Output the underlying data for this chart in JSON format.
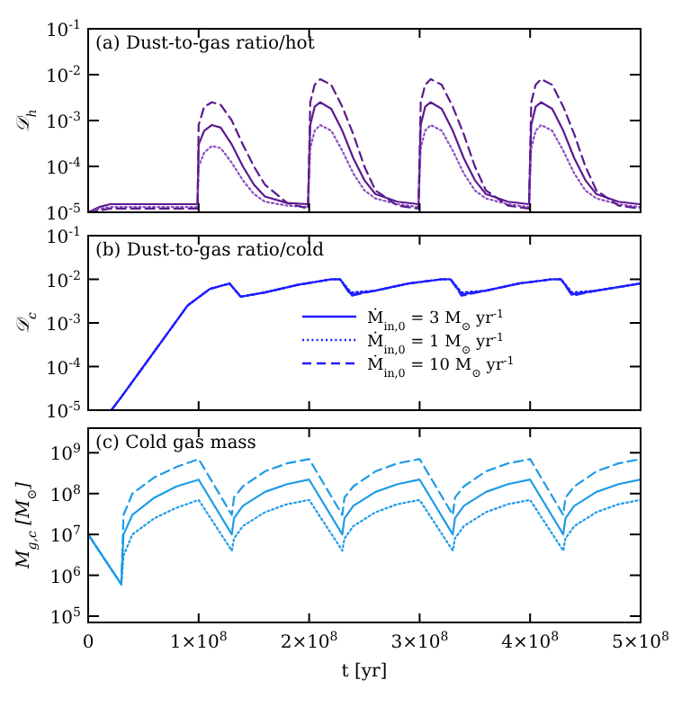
{
  "chart_data": [
    {
      "type": "line",
      "title": "(a) Dust-to-gas ratio/hot",
      "ylabel": "𝒟$_{h}$",
      "log": "y",
      "xlim": [
        0,
        500000000.0
      ],
      "ylim": [
        1e-05,
        0.1
      ],
      "xticks": [
        {
          "value": 0,
          "label": null
        },
        {
          "value": 100000000.0,
          "label": null
        },
        {
          "value": 200000000.0,
          "label": null
        },
        {
          "value": 300000000.0,
          "label": null
        },
        {
          "value": 400000000.0,
          "label": null
        },
        {
          "value": 500000000.0,
          "label": null
        }
      ],
      "yticks": [
        {
          "value": 1e-05,
          "label": "10$^{-5}$"
        },
        {
          "value": 0.0001,
          "label": "10$^{-4}$"
        },
        {
          "value": 0.001,
          "label": "10$^{-3}$"
        },
        {
          "value": 0.01,
          "label": "10$^{-2}$"
        },
        {
          "value": 0.1,
          "label": "10$^{-1}$"
        }
      ],
      "tick_labels": "y",
      "grid": false,
      "legend": false,
      "marker": "none",
      "series": [
        {
          "color": "#5b1a8e",
          "line_style": "solid",
          "x": [
            0,
            10000000.0,
            20000000.0,
            99000000.0,
            100000000.0,
            105000000.0,
            112000000.0,
            120000000.0,
            130000000.0,
            140000000.0,
            150000000.0,
            160000000.0,
            180000000.0,
            199000000.0,
            201000000.0,
            205000000.0,
            210000000.0,
            220000000.0,
            230000000.0,
            240000000.0,
            250000000.0,
            260000000.0,
            280000000.0,
            299000000.0,
            301000000.0,
            305000000.0,
            310000000.0,
            320000000.0,
            330000000.0,
            340000000.0,
            350000000.0,
            360000000.0,
            380000000.0,
            399000000.0,
            401000000.0,
            405000000.0,
            410000000.0,
            420000000.0,
            430000000.0,
            440000000.0,
            450000000.0,
            460000000.0,
            480000000.0,
            499000000.0,
            500000000.0
          ],
          "values": [
            1e-05,
            1.3e-05,
            1.5e-05,
            1.5e-05,
            0.0003,
            0.0006,
            0.0008,
            0.0007,
            0.0003,
            0.0001,
            4e-05,
            2.2e-05,
            1.6e-05,
            1.5e-05,
            0.0008,
            0.002,
            0.0025,
            0.0018,
            0.0006,
            0.00015,
            5e-05,
            2.5e-05,
            1.7e-05,
            1.5e-05,
            0.0008,
            0.002,
            0.0025,
            0.0018,
            0.0006,
            0.00015,
            5e-05,
            2.5e-05,
            1.7e-05,
            1.5e-05,
            0.0008,
            0.002,
            0.0025,
            0.0018,
            0.0006,
            0.00015,
            5e-05,
            2.5e-05,
            1.7e-05,
            1.5e-05,
            1.5e-05
          ]
        },
        {
          "color": "#8a4fc0",
          "line_style": "dotted",
          "x": [
            0,
            10000000.0,
            20000000.0,
            99000000.0,
            100000000.0,
            105000000.0,
            112000000.0,
            120000000.0,
            130000000.0,
            140000000.0,
            150000000.0,
            160000000.0,
            180000000.0,
            199000000.0,
            201000000.0,
            205000000.0,
            210000000.0,
            220000000.0,
            230000000.0,
            240000000.0,
            250000000.0,
            260000000.0,
            280000000.0,
            299000000.0,
            301000000.0,
            305000000.0,
            310000000.0,
            320000000.0,
            330000000.0,
            340000000.0,
            350000000.0,
            360000000.0,
            380000000.0,
            399000000.0,
            401000000.0,
            405000000.0,
            410000000.0,
            420000000.0,
            430000000.0,
            440000000.0,
            450000000.0,
            460000000.0,
            480000000.0,
            499000000.0,
            500000000.0
          ],
          "values": [
            1e-05,
            1.2e-05,
            1.3e-05,
            1.3e-05,
            0.0001,
            0.0002,
            0.00028,
            0.00025,
            0.00012,
            5e-05,
            2.5e-05,
            1.7e-05,
            1.4e-05,
            1.3e-05,
            0.00025,
            0.0006,
            0.0008,
            0.0006,
            0.00022,
            7e-05,
            3e-05,
            2e-05,
            1.5e-05,
            1.3e-05,
            0.00025,
            0.0006,
            0.0008,
            0.0006,
            0.00022,
            7e-05,
            3e-05,
            2e-05,
            1.5e-05,
            1.3e-05,
            0.00025,
            0.0006,
            0.0008,
            0.0006,
            0.00022,
            7e-05,
            3e-05,
            2e-05,
            1.5e-05,
            1.3e-05,
            1.3e-05
          ]
        },
        {
          "color": "#5b1a8e",
          "line_style": "dashed",
          "x": [
            0,
            10000000.0,
            20000000.0,
            99000000.0,
            100000000.0,
            105000000.0,
            112000000.0,
            120000000.0,
            130000000.0,
            140000000.0,
            150000000.0,
            160000000.0,
            180000000.0,
            199000000.0,
            201000000.0,
            205000000.0,
            210000000.0,
            220000000.0,
            230000000.0,
            240000000.0,
            250000000.0,
            260000000.0,
            280000000.0,
            299000000.0,
            301000000.0,
            305000000.0,
            310000000.0,
            320000000.0,
            330000000.0,
            340000000.0,
            350000000.0,
            360000000.0,
            380000000.0,
            399000000.0,
            401000000.0,
            405000000.0,
            410000000.0,
            420000000.0,
            430000000.0,
            440000000.0,
            450000000.0,
            460000000.0,
            480000000.0,
            499000000.0,
            500000000.0
          ],
          "values": [
            1e-05,
            1.1e-05,
            1.2e-05,
            1.2e-05,
            0.0008,
            0.002,
            0.0025,
            0.0022,
            0.001,
            0.0003,
            0.0001,
            4e-05,
            1.6e-05,
            1.2e-05,
            0.0025,
            0.006,
            0.008,
            0.006,
            0.002,
            0.0005,
            0.0001,
            3e-05,
            1.4e-05,
            1.2e-05,
            0.0025,
            0.006,
            0.008,
            0.006,
            0.002,
            0.0005,
            0.0001,
            3e-05,
            1.4e-05,
            1.2e-05,
            0.0025,
            0.006,
            0.008,
            0.006,
            0.002,
            0.0005,
            0.0001,
            3e-05,
            1.4e-05,
            1.2e-05,
            1.2e-05
          ]
        }
      ]
    },
    {
      "type": "line",
      "title": "(b) Dust-to-gas ratio/cold",
      "ylabel": "𝒟$_{c}$",
      "log": "y",
      "xlim": [
        0,
        500000000.0
      ],
      "ylim": [
        1e-05,
        0.1
      ],
      "xticks": [
        {
          "value": 0,
          "label": null
        },
        {
          "value": 100000000.0,
          "label": null
        },
        {
          "value": 200000000.0,
          "label": null
        },
        {
          "value": 300000000.0,
          "label": null
        },
        {
          "value": 400000000.0,
          "label": null
        },
        {
          "value": 500000000.0,
          "label": null
        }
      ],
      "yticks": [
        {
          "value": 1e-05,
          "label": "10$^{-5}$"
        },
        {
          "value": 0.0001,
          "label": "10$^{-4}$"
        },
        {
          "value": 0.001,
          "label": "10$^{-3}$"
        },
        {
          "value": 0.01,
          "label": "10$^{-2}$"
        },
        {
          "value": 0.1,
          "label": "10$^{-1}$"
        }
      ],
      "tick_labels": "y",
      "grid": false,
      "legend": "bottom right",
      "marker": "none",
      "series": [
        {
          "name": "Ṁ$_{in,0}$ = 3 M$_{⊙}$ yr$^{-1}$",
          "color": "#1f1fff",
          "line_style": "solid",
          "x": [
            21000000.0,
            30000000.0,
            50000000.0,
            70000000.0,
            90000000.0,
            110000000.0,
            128000000.0,
            138000000.0,
            160000000.0,
            190000000.0,
            220000000.0,
            228000000.0,
            238000000.0,
            260000000.0,
            290000000.0,
            320000000.0,
            328000000.0,
            338000000.0,
            360000000.0,
            390000000.0,
            420000000.0,
            428000000.0,
            438000000.0,
            460000000.0,
            500000000.0
          ],
          "values": [
            1e-05,
            2e-05,
            0.0001,
            0.0005,
            0.0025,
            0.006,
            0.008,
            0.004,
            0.005,
            0.0075,
            0.01,
            0.01,
            0.0045,
            0.0055,
            0.008,
            0.01,
            0.01,
            0.0045,
            0.0055,
            0.008,
            0.01,
            0.01,
            0.0045,
            0.0055,
            0.008
          ]
        },
        {
          "name": "Ṁ$_{in,0}$ = 1 M$_{⊙}$ yr$^{-1}$",
          "color": "#1f1fff",
          "line_style": "dotted",
          "x": [
            21000000.0,
            30000000.0,
            50000000.0,
            70000000.0,
            90000000.0,
            110000000.0,
            128000000.0,
            138000000.0,
            160000000.0,
            190000000.0,
            220000000.0,
            228000000.0,
            238000000.0,
            260000000.0,
            290000000.0,
            320000000.0,
            328000000.0,
            338000000.0,
            360000000.0,
            390000000.0,
            420000000.0,
            428000000.0,
            438000000.0,
            460000000.0,
            500000000.0
          ],
          "values": [
            1e-05,
            2e-05,
            0.0001,
            0.0005,
            0.0025,
            0.006,
            0.008,
            0.004,
            0.005,
            0.0075,
            0.01,
            0.01,
            0.005,
            0.0055,
            0.008,
            0.01,
            0.01,
            0.005,
            0.0055,
            0.008,
            0.01,
            0.01,
            0.005,
            0.0055,
            0.008
          ]
        },
        {
          "name": "Ṁ$_{in,0}$ = 10 M$_{⊙}$ yr$^{-1}$",
          "color": "#1f1fff",
          "line_style": "dashed",
          "x": [
            21000000.0,
            30000000.0,
            50000000.0,
            70000000.0,
            90000000.0,
            110000000.0,
            128000000.0,
            138000000.0,
            160000000.0,
            190000000.0,
            220000000.0,
            228000000.0,
            238000000.0,
            260000000.0,
            290000000.0,
            320000000.0,
            328000000.0,
            338000000.0,
            360000000.0,
            390000000.0,
            420000000.0,
            428000000.0,
            438000000.0,
            460000000.0,
            500000000.0
          ],
          "values": [
            1e-05,
            2e-05,
            0.0001,
            0.0005,
            0.0025,
            0.006,
            0.008,
            0.004,
            0.005,
            0.0075,
            0.01,
            0.01,
            0.0042,
            0.0055,
            0.008,
            0.01,
            0.01,
            0.0042,
            0.0055,
            0.008,
            0.01,
            0.01,
            0.0042,
            0.0055,
            0.008
          ]
        }
      ]
    },
    {
      "type": "line",
      "title": "(c) Cold gas mass",
      "xlabel": "t [yr]",
      "ylabel": "M$_{g,c}$ [M$_{⊙}$]",
      "log": "y",
      "xlim": [
        0,
        500000000.0
      ],
      "ylim": [
        70000.0,
        4000000000.0
      ],
      "xticks": [
        0,
        {
          "value": 100000000.0,
          "label": "1×10$^{8}$"
        },
        {
          "value": 200000000.0,
          "label": "2×10$^{8}$"
        },
        {
          "value": 300000000.0,
          "label": "3×10$^{8}$"
        },
        {
          "value": 400000000.0,
          "label": "4×10$^{8}$"
        },
        {
          "value": 500000000.0,
          "label": "5×10$^{8}$"
        }
      ],
      "yticks": [
        {
          "value": 100000.0,
          "label": "10$^{5}$"
        },
        {
          "value": 1000000.0,
          "label": "10$^{6}$"
        },
        {
          "value": 10000000.0,
          "label": "10$^{7}$"
        },
        {
          "value": 100000000.0,
          "label": "10$^{8}$"
        },
        {
          "value": 1000000000.0,
          "label": "10$^{9}$"
        }
      ],
      "grid": false,
      "legend": false,
      "marker": "none",
      "series": [
        {
          "color": "#1e9be8",
          "line_style": "solid",
          "x": [
            0,
            30000000.0,
            32000000.0,
            40000000.0,
            60000000.0,
            80000000.0,
            100000000.0,
            130000000.0,
            132000000.0,
            140000000.0,
            160000000.0,
            180000000.0,
            200000000.0,
            230000000.0,
            232000000.0,
            240000000.0,
            260000000.0,
            280000000.0,
            300000000.0,
            330000000.0,
            332000000.0,
            340000000.0,
            360000000.0,
            380000000.0,
            400000000.0,
            430000000.0,
            432000000.0,
            440000000.0,
            460000000.0,
            480000000.0,
            500000000.0
          ],
          "values": [
            10000000.0,
            600000.0,
            10000000.0,
            30000000.0,
            80000000.0,
            150000000.0,
            220000000.0,
            10000000.0,
            25000000.0,
            50000000.0,
            110000000.0,
            170000000.0,
            220000000.0,
            10000000.0,
            25000000.0,
            50000000.0,
            110000000.0,
            170000000.0,
            220000000.0,
            10000000.0,
            25000000.0,
            50000000.0,
            110000000.0,
            170000000.0,
            220000000.0,
            10000000.0,
            25000000.0,
            50000000.0,
            110000000.0,
            170000000.0,
            220000000.0
          ]
        },
        {
          "color": "#1e9be8",
          "line_style": "dotted",
          "x": [
            0,
            30000000.0,
            32000000.0,
            40000000.0,
            60000000.0,
            80000000.0,
            100000000.0,
            130000000.0,
            132000000.0,
            140000000.0,
            160000000.0,
            180000000.0,
            200000000.0,
            230000000.0,
            232000000.0,
            240000000.0,
            260000000.0,
            280000000.0,
            300000000.0,
            330000000.0,
            332000000.0,
            340000000.0,
            360000000.0,
            380000000.0,
            400000000.0,
            430000000.0,
            432000000.0,
            440000000.0,
            460000000.0,
            480000000.0,
            500000000.0
          ],
          "values": [
            10000000.0,
            600000.0,
            3000000.0,
            10000000.0,
            25000000.0,
            45000000.0,
            70000000.0,
            4000000.0,
            8000000.0,
            16000000.0,
            35000000.0,
            55000000.0,
            70000000.0,
            4000000.0,
            8000000.0,
            16000000.0,
            35000000.0,
            55000000.0,
            70000000.0,
            4000000.0,
            8000000.0,
            16000000.0,
            35000000.0,
            55000000.0,
            70000000.0,
            4000000.0,
            8000000.0,
            16000000.0,
            35000000.0,
            55000000.0,
            70000000.0
          ]
        },
        {
          "color": "#1e9be8",
          "line_style": "dashed",
          "x": [
            0,
            30000000.0,
            32000000.0,
            40000000.0,
            60000000.0,
            80000000.0,
            100000000.0,
            130000000.0,
            132000000.0,
            140000000.0,
            160000000.0,
            180000000.0,
            200000000.0,
            230000000.0,
            232000000.0,
            240000000.0,
            260000000.0,
            280000000.0,
            300000000.0,
            330000000.0,
            332000000.0,
            340000000.0,
            360000000.0,
            380000000.0,
            400000000.0,
            430000000.0,
            432000000.0,
            440000000.0,
            460000000.0,
            480000000.0,
            500000000.0
          ],
          "values": [
            10000000.0,
            600000.0,
            30000000.0,
            100000000.0,
            250000000.0,
            450000000.0,
            700000000.0,
            30000000.0,
            80000000.0,
            150000000.0,
            350000000.0,
            550000000.0,
            700000000.0,
            30000000.0,
            80000000.0,
            150000000.0,
            350000000.0,
            550000000.0,
            700000000.0,
            30000000.0,
            80000000.0,
            150000000.0,
            350000000.0,
            550000000.0,
            700000000.0,
            30000000.0,
            80000000.0,
            150000000.0,
            350000000.0,
            550000000.0,
            700000000.0
          ]
        }
      ]
    }
  ]
}
